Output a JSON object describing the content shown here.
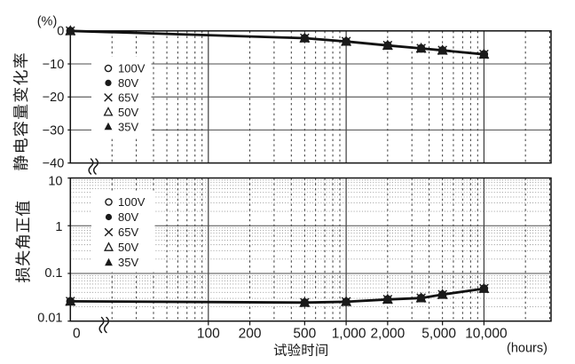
{
  "figure": {
    "background": "#ffffff",
    "ink": "#1a1a1a",
    "top_panel": {
      "y_axis_title": "静电容量变化率",
      "y_axis_unit": "(%)",
      "y_tick_labels": [
        "0",
        "−10",
        "−20",
        "−30",
        "−40"
      ],
      "legend": [
        {
          "marker": "circle-open",
          "label": "100V"
        },
        {
          "marker": "circle-filled",
          "label": "80V"
        },
        {
          "marker": "x",
          "label": "65V"
        },
        {
          "marker": "triangle-open",
          "label": "50V"
        },
        {
          "marker": "triangle-filled",
          "label": "35V"
        }
      ]
    },
    "bottom_panel": {
      "y_axis_title": "损失角正值",
      "y_tick_labels": [
        "10",
        "1",
        "0.1",
        "0.01"
      ],
      "legend": [
        {
          "marker": "circle-open",
          "label": "100V"
        },
        {
          "marker": "circle-filled",
          "label": "80V"
        },
        {
          "marker": "x",
          "label": "65V"
        },
        {
          "marker": "triangle-open",
          "label": "50V"
        },
        {
          "marker": "triangle-filled",
          "label": "35V"
        }
      ]
    },
    "x_axis": {
      "title": "试验时间",
      "unit": "(hours)",
      "tick_labels": [
        "0",
        "100",
        "200",
        "500",
        "1,000",
        "2,000",
        "5,000",
        "10,000"
      ],
      "tick_hours": [
        0,
        100,
        200,
        500,
        1000,
        2000,
        5000,
        10000
      ]
    }
  },
  "chart_data": [
    {
      "type": "line",
      "title": "",
      "xlabel": "试验时间 (hours)",
      "ylabel": "静电容量变化率 (%)",
      "x_scale": "log",
      "y_scale": "linear",
      "ylim": [
        -40,
        0
      ],
      "y_ticks": [
        0,
        -10,
        -20,
        -30,
        -40
      ],
      "xlim_hours": [
        0,
        30000
      ],
      "grid": "x-log-minor-dashed, y-major-solid",
      "legend_position": "upper-left-inside",
      "x": [
        0,
        500,
        1000,
        2000,
        3500,
        5000,
        10000
      ],
      "series": [
        {
          "name": "100V",
          "marker": "circle-open",
          "values": [
            0,
            -2.2,
            -3.2,
            -4.4,
            -5.3,
            -5.9,
            -7.1
          ]
        },
        {
          "name": "80V",
          "marker": "circle-filled",
          "values": [
            0,
            -2.2,
            -3.2,
            -4.4,
            -5.3,
            -5.9,
            -7.1
          ]
        },
        {
          "name": "65V",
          "marker": "x",
          "values": [
            0,
            -2.2,
            -3.2,
            -4.4,
            -5.3,
            -5.9,
            -7.1
          ]
        },
        {
          "name": "50V",
          "marker": "triangle-open",
          "values": [
            0,
            -2.2,
            -3.2,
            -4.4,
            -5.3,
            -5.9,
            -7.1
          ]
        },
        {
          "name": "35V",
          "marker": "triangle-filled",
          "values": [
            0,
            -2.2,
            -3.2,
            -4.4,
            -5.3,
            -5.9,
            -7.1
          ]
        }
      ],
      "note": "all five voltage series coincide on one curve; x axis has a break between 0 and the log region"
    },
    {
      "type": "line",
      "title": "",
      "xlabel": "试验时间 (hours)",
      "ylabel": "损失角正值",
      "x_scale": "log",
      "y_scale": "log",
      "ylim": [
        0.01,
        10
      ],
      "y_ticks": [
        10,
        1,
        0.1,
        0.01
      ],
      "xlim_hours": [
        0,
        30000
      ],
      "grid": "x-log-minor-dashed, y-log-minor-dotted, majors-solid",
      "legend_position": "upper-left-inside",
      "x": [
        0,
        500,
        1000,
        2000,
        3500,
        5000,
        10000
      ],
      "series": [
        {
          "name": "100V",
          "marker": "circle-open",
          "values": [
            0.026,
            0.0245,
            0.0255,
            0.0285,
            0.0305,
            0.036,
            0.048
          ]
        },
        {
          "name": "80V",
          "marker": "circle-filled",
          "values": [
            0.026,
            0.0245,
            0.0255,
            0.0285,
            0.0305,
            0.036,
            0.048
          ]
        },
        {
          "name": "65V",
          "marker": "x",
          "values": [
            0.026,
            0.0245,
            0.0255,
            0.0285,
            0.0305,
            0.036,
            0.048
          ]
        },
        {
          "name": "50V",
          "marker": "triangle-open",
          "values": [
            0.026,
            0.0245,
            0.0255,
            0.0285,
            0.0305,
            0.036,
            0.048
          ]
        },
        {
          "name": "35V",
          "marker": "triangle-filled",
          "values": [
            0.026,
            0.0245,
            0.0255,
            0.0285,
            0.0305,
            0.036,
            0.048
          ]
        }
      ],
      "note": "all five voltage series coincide on one curve"
    }
  ]
}
